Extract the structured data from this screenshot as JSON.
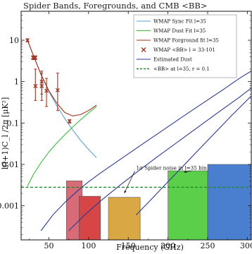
{
  "chart_data": {
    "type": "line",
    "title": "Spider Bands, Foregrounds, and CMB <BB>",
    "xlabel": "Frequency (GHz)",
    "ylabel": "l(l+1)C_l /2π [μK²]",
    "xlim": [
      15,
      305
    ],
    "ylim": [
      0.00015,
      50
    ],
    "yscale": "log",
    "x_ticks": [
      50,
      100,
      150,
      200,
      250,
      300
    ],
    "x_tick_labels": [
      "50",
      "100",
      "150",
      "200",
      "250",
      "300"
    ],
    "y_ticks": [
      0.001,
      0.01,
      0.1,
      1,
      10
    ],
    "y_tick_labels": [
      "0.001",
      "0.01",
      "0.1",
      "1",
      "10"
    ],
    "grid": false,
    "legend_position": "top-right",
    "legend": [
      {
        "label": "WMAP Sync Fit l=35",
        "color": "#5fa3c8",
        "style": "line"
      },
      {
        "label": "WMAP Dust Fit l=35",
        "color": "#3cb83c",
        "style": "line"
      },
      {
        "label": "WMAP Forground fit l=35",
        "color": "#a0321e",
        "style": "line"
      },
      {
        "label": "WMAP <BB> l = 33-101",
        "color": "#a0321e",
        "style": "x"
      },
      {
        "label": "Estimated Dust",
        "color": "#2b3a8f",
        "style": "line"
      },
      {
        "label": "<BB> at l=35, r = 0.1",
        "color": "#1f8a2a",
        "style": "dash"
      }
    ],
    "series": [
      {
        "name": "WMAP Sync Fit l=35",
        "color": "#5fa3c8",
        "x": [
          23,
          30,
          40,
          50,
          60,
          70,
          80,
          90,
          100,
          110
        ],
        "y": [
          10,
          4.5,
          1.5,
          0.58,
          0.26,
          0.128,
          0.068,
          0.038,
          0.023,
          0.0145
        ]
      },
      {
        "name": "WMAP Dust Fit l=35",
        "color": "#3cb83c",
        "x": [
          23,
          30,
          40,
          50,
          60,
          70,
          80,
          90,
          100,
          110
        ],
        "y": [
          0.003,
          0.0055,
          0.011,
          0.02,
          0.033,
          0.052,
          0.08,
          0.12,
          0.175,
          0.25
        ]
      },
      {
        "name": "WMAP Forground fit l=35",
        "color": "#a0321e",
        "x": [
          23,
          30,
          40,
          50,
          60,
          70,
          80,
          90,
          100,
          110
        ],
        "y": [
          10,
          4.5,
          1.5,
          0.6,
          0.3,
          0.18,
          0.148,
          0.16,
          0.2,
          0.27
        ]
      },
      {
        "name": "Estimated Dust",
        "color": "#2b3a8f",
        "x": [
          40,
          55,
          70,
          85,
          100,
          115,
          130,
          150,
          170,
          190,
          210,
          230,
          250,
          270,
          290,
          305
        ],
        "y": [
          0.00025,
          0.0006,
          0.0012,
          0.0022,
          0.0038,
          0.0062,
          0.0098,
          0.018,
          0.033,
          0.06,
          0.11,
          0.2,
          0.36,
          0.65,
          1.2,
          1.8
        ]
      },
      {
        "name": "Extra Dust A",
        "color": "#2b3a8f",
        "x": [
          75,
          95,
          115,
          140,
          165,
          190,
          215,
          240,
          265,
          290,
          305
        ],
        "y": [
          0.00025,
          0.0006,
          0.0013,
          0.0032,
          0.0075,
          0.017,
          0.038,
          0.085,
          0.19,
          0.42,
          0.7
        ]
      },
      {
        "name": "Extra Dust B",
        "color": "#2b3a8f",
        "x": [
          160,
          180,
          200,
          220,
          240,
          260,
          280,
          305
        ],
        "y": [
          0.0006,
          0.0015,
          0.0038,
          0.0095,
          0.024,
          0.06,
          0.15,
          0.45
        ]
      }
    ],
    "wmap_points": [
      {
        "x": 23,
        "y": 10,
        "yerr_lo": 9.2,
        "yerr_hi": 10.8
      },
      {
        "x": 30,
        "y": 3.8,
        "yerr_lo": 3.4,
        "yerr_hi": 4.2
      },
      {
        "x": 33,
        "y": 3.8,
        "yerr_lo": 3.4,
        "yerr_hi": 4.2
      },
      {
        "x": 33,
        "y": 0.78,
        "yerr_lo": 0.35,
        "yerr_hi": 2.0
      },
      {
        "x": 41,
        "y": 1.0,
        "yerr_lo": 0.5,
        "yerr_hi": 1.8
      },
      {
        "x": 41,
        "y": 0.78,
        "yerr_lo": 0.35,
        "yerr_hi": 1.6
      },
      {
        "x": 47,
        "y": 0.6,
        "yerr_lo": 0.25,
        "yerr_hi": 1.2
      },
      {
        "x": 61,
        "y": 0.62,
        "yerr_lo": 0.2,
        "yerr_hi": 1.6
      },
      {
        "x": 76,
        "y": 0.11,
        "yerr_lo": 0.1,
        "yerr_hi": 0.12
      }
    ],
    "bb_level": 0.0028,
    "bands": [
      {
        "x0": 72,
        "x1": 92,
        "top": 0.004,
        "color": "#d96a78"
      },
      {
        "x0": 88,
        "x1": 115,
        "top": 0.0017,
        "color": "#d64646"
      },
      {
        "x0": 125,
        "x1": 165,
        "top": 0.0016,
        "color": "#d9a844"
      },
      {
        "x0": 200,
        "x1": 250,
        "top": 0.007,
        "color": "#5ccf4a"
      },
      {
        "x0": 250,
        "x1": 305,
        "top": 0.01,
        "color": "#4a7fcf"
      }
    ],
    "annotation": {
      "text": "1σ Spider noise in l=35 bin",
      "x": 160,
      "y": 0.0075,
      "arrow_to_x": [
        145,
        220
      ],
      "arrow_to_y": [
        0.002,
        0.0065
      ]
    }
  }
}
